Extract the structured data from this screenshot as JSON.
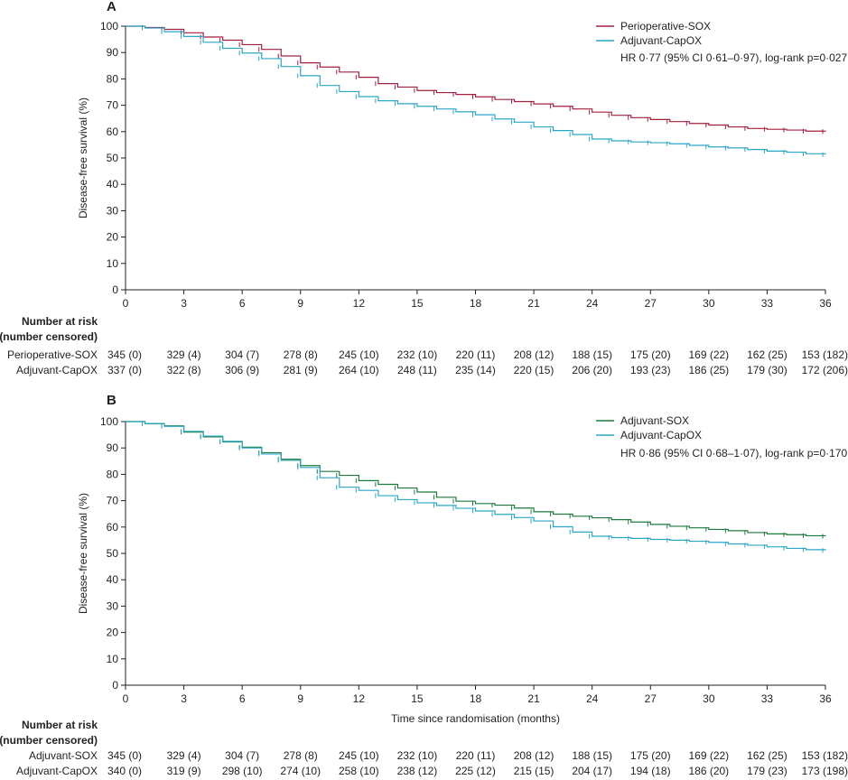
{
  "chart_data": [
    {
      "panel": "A",
      "type": "line",
      "subtype": "kaplan-meier",
      "ylabel": "Disease-free survival (%)",
      "xlabel": "",
      "xticks": [
        0,
        3,
        6,
        9,
        12,
        15,
        18,
        21,
        24,
        27,
        30,
        33,
        36
      ],
      "yticks": [
        0,
        10,
        20,
        30,
        40,
        50,
        60,
        70,
        80,
        90,
        100
      ],
      "xlim": [
        0,
        36
      ],
      "ylim": [
        0,
        100
      ],
      "legend": [
        {
          "name": "Perioperative-SOX",
          "color": "#a0203e"
        },
        {
          "name": "Adjuvant-CapOX",
          "color": "#2ba6c6"
        }
      ],
      "annotation": "HR 0·77 (95% CI 0·61–0·97), log-rank p=0·027",
      "series": [
        {
          "name": "Perioperative-SOX",
          "color": "#a0203e",
          "x": [
            0,
            1,
            2,
            3,
            4,
            5,
            6,
            7,
            8,
            9,
            10,
            11,
            12,
            13,
            14,
            15,
            16,
            17,
            18,
            19,
            20,
            21,
            22,
            23,
            24,
            25,
            26,
            27,
            28,
            29,
            30,
            31,
            32,
            33,
            34,
            35,
            36
          ],
          "y": [
            100,
            99.5,
            98.8,
            97.5,
            95.9,
            94.7,
            93,
            91.2,
            88.7,
            86.1,
            84.5,
            82.6,
            80.6,
            78.2,
            76.9,
            75.6,
            74.8,
            74.1,
            73.2,
            72.2,
            71.4,
            70.5,
            69.6,
            68.6,
            67.4,
            66.2,
            65.3,
            64.6,
            63.8,
            63.1,
            62.5,
            61.8,
            61.2,
            60.9,
            60.6,
            60.2,
            60
          ]
        },
        {
          "name": "Adjuvant-CapOX",
          "color": "#2ba6c6",
          "x": [
            0,
            1,
            2,
            3,
            4,
            5,
            6,
            7,
            8,
            9,
            10,
            11,
            12,
            13,
            14,
            15,
            16,
            17,
            18,
            19,
            20,
            21,
            22,
            23,
            24,
            25,
            26,
            27,
            28,
            29,
            30,
            31,
            32,
            33,
            34,
            35,
            36
          ],
          "y": [
            100,
            99.3,
            97.9,
            96.1,
            93.9,
            91.6,
            89.8,
            87.7,
            84.7,
            81.2,
            77.5,
            75.2,
            73.3,
            71.7,
            70.6,
            69.6,
            68.6,
            67.5,
            66.4,
            64.8,
            63.6,
            61.8,
            60.4,
            58.9,
            57.2,
            56.5,
            56.1,
            55.8,
            55.4,
            54.8,
            54.2,
            53.8,
            53.2,
            52.6,
            52.2,
            51.6,
            51.3
          ]
        }
      ],
      "risk_table": {
        "title_line1": "Number at risk",
        "title_line2": "(number censored)",
        "rows": [
          {
            "label": "Perioperative-SOX",
            "values": [
              "345 (0)",
              "329 (4)",
              "304 (7)",
              "278 (8)",
              "245 (10)",
              "232 (10)",
              "220 (11)",
              "208 (12)",
              "188 (15)",
              "175 (20)",
              "169 (22)",
              "162 (25)",
              "153 (182)"
            ]
          },
          {
            "label": "Adjuvant-CapOX",
            "values": [
              "337 (0)",
              "322 (8)",
              "306 (9)",
              "281 (9)",
              "264 (10)",
              "248 (11)",
              "235 (14)",
              "220 (15)",
              "206 (20)",
              "193 (23)",
              "186 (25)",
              "179 (30)",
              "172 (206)"
            ]
          }
        ]
      }
    },
    {
      "panel": "B",
      "type": "line",
      "subtype": "kaplan-meier",
      "ylabel": "Disease-free survival (%)",
      "xlabel": "Time since randomisation (months)",
      "xticks": [
        0,
        3,
        6,
        9,
        12,
        15,
        18,
        21,
        24,
        27,
        30,
        33,
        36
      ],
      "yticks": [
        0,
        10,
        20,
        30,
        40,
        50,
        60,
        70,
        80,
        90,
        100
      ],
      "xlim": [
        0,
        36
      ],
      "ylim": [
        0,
        100
      ],
      "legend": [
        {
          "name": "Adjuvant-SOX",
          "color": "#1c7a3c"
        },
        {
          "name": "Adjuvant-CapOX",
          "color": "#2ba6c6"
        }
      ],
      "annotation": "HR 0·86 (95% CI 0·68–1·07), log-rank p=0·170",
      "series": [
        {
          "name": "Adjuvant-SOX",
          "color": "#1c7a3c",
          "x": [
            0,
            1,
            2,
            3,
            4,
            5,
            6,
            7,
            8,
            9,
            10,
            11,
            12,
            13,
            14,
            15,
            16,
            17,
            18,
            19,
            20,
            21,
            22,
            23,
            24,
            25,
            26,
            27,
            28,
            29,
            30,
            31,
            32,
            33,
            34,
            35,
            36
          ],
          "y": [
            100,
            99.2,
            98.4,
            96,
            94.2,
            92.3,
            90.3,
            88.2,
            85.7,
            83.3,
            81.1,
            79.6,
            77.6,
            76.2,
            74.8,
            73.3,
            71.3,
            69.8,
            68.9,
            68.3,
            67.2,
            65.8,
            64.9,
            64.1,
            63.5,
            62.8,
            61.9,
            61,
            60.3,
            59.7,
            59.1,
            58.6,
            57.9,
            57.4,
            57.1,
            56.7,
            56.5
          ]
        },
        {
          "name": "Adjuvant-CapOX",
          "color": "#2ba6c6",
          "x": [
            0,
            1,
            2,
            3,
            4,
            5,
            6,
            7,
            8,
            9,
            10,
            11,
            12,
            13,
            14,
            15,
            16,
            17,
            18,
            19,
            20,
            21,
            22,
            23,
            24,
            25,
            26,
            27,
            28,
            29,
            30,
            31,
            32,
            33,
            34,
            35,
            36
          ],
          "y": [
            100,
            99.3,
            98.2,
            96.3,
            94.5,
            92.5,
            90,
            87.7,
            85.3,
            82.6,
            78.7,
            75.1,
            73.9,
            71.9,
            70.4,
            69.2,
            68.2,
            67.1,
            66.1,
            64.8,
            63.6,
            62.3,
            60.1,
            58.1,
            56.5,
            56,
            55.7,
            55.3,
            55,
            54.6,
            54.2,
            53.6,
            53.1,
            52.5,
            51.9,
            51.4,
            51.1
          ]
        }
      ],
      "risk_table": {
        "title_line1": "Number at risk",
        "title_line2": "(number censored)",
        "rows": [
          {
            "label": "Adjuvant-SOX",
            "values": [
              "345 (0)",
              "329 (4)",
              "304 (7)",
              "278 (8)",
              "245 (10)",
              "232 (10)",
              "220 (11)",
              "208 (12)",
              "188 (15)",
              "175 (20)",
              "169 (22)",
              "162 (25)",
              "153 (182)"
            ]
          },
          {
            "label": "Adjuvant-CapOX",
            "values": [
              "340 (0)",
              "319 (9)",
              "298 (10)",
              "274 (10)",
              "258 (10)",
              "238 (12)",
              "225 (12)",
              "215 (15)",
              "204 (17)",
              "194 (18)",
              "186 (20)",
              "179 (23)",
              "173 (198)"
            ]
          }
        ]
      }
    }
  ]
}
